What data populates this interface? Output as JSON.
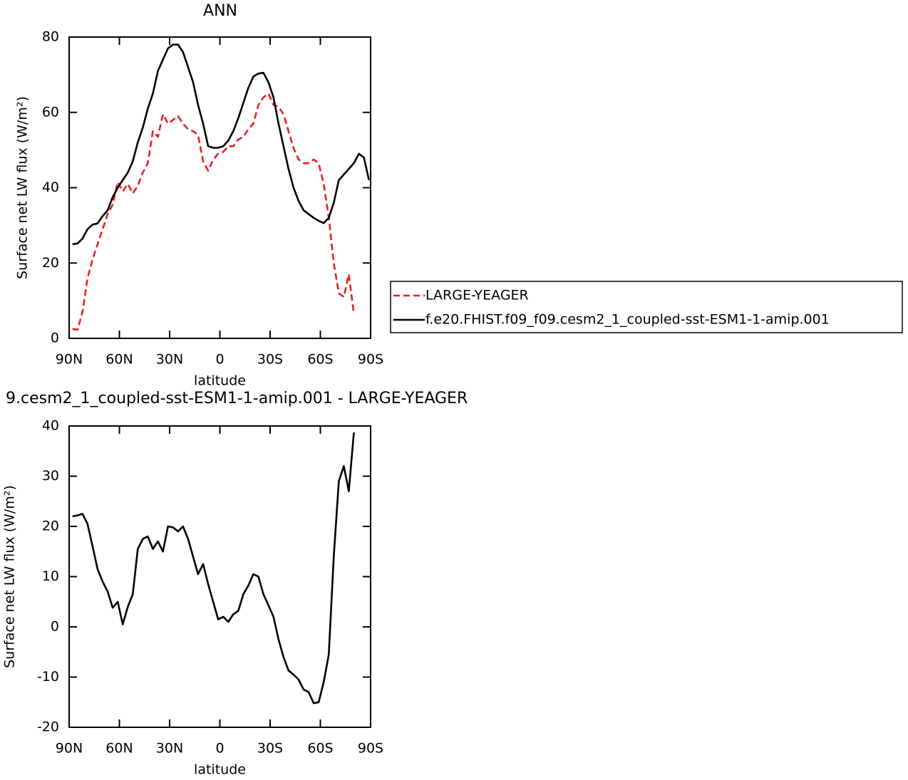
{
  "chart_data": [
    {
      "type": "line",
      "title": "ANN",
      "x_label": "latitude",
      "y_label": "Surface net LW flux (W/m²)",
      "x": [
        88,
        85,
        82,
        79,
        76,
        73,
        70,
        67,
        64,
        61,
        58,
        55,
        52,
        49,
        46,
        43,
        40,
        37,
        34,
        31,
        28,
        25,
        22,
        19,
        16,
        13,
        10,
        7,
        4,
        1,
        -2,
        -5,
        -8,
        -11,
        -14,
        -17,
        -20,
        -23,
        -26,
        -29,
        -32,
        -35,
        -38,
        -41,
        -44,
        -47,
        -50,
        -53,
        -56,
        -59,
        -62,
        -65,
        -68,
        -71,
        -74,
        -77,
        -80,
        -83,
        -86,
        -89
      ],
      "xlim": [
        90,
        -90
      ],
      "xticks": [
        {
          "value": 90,
          "label": "90N"
        },
        {
          "value": 60,
          "label": "60N"
        },
        {
          "value": 30,
          "label": "30N"
        },
        0,
        {
          "value": -30,
          "label": "30S"
        },
        {
          "value": -60,
          "label": "60S"
        },
        {
          "value": -90,
          "label": "90S"
        }
      ],
      "ylim": [
        0,
        80
      ],
      "yticks": [
        0,
        20,
        40,
        60,
        80
      ],
      "legend": "right",
      "series": [
        {
          "name": "LARGE-YEAGER",
          "color": "#e8201c",
          "style": "dashed",
          "values": [
            2.5,
            2.3,
            7,
            16,
            21,
            25,
            29,
            33,
            35.5,
            41.5,
            39,
            41,
            38.5,
            40.5,
            44,
            46.5,
            55,
            53.5,
            59.5,
            57,
            58,
            59,
            57,
            55.5,
            55,
            54,
            47,
            44.5,
            47.5,
            49,
            49.5,
            51,
            51,
            52.8,
            53.5,
            55.5,
            57,
            62,
            64,
            65,
            62,
            61.5,
            59.5,
            55,
            50.5,
            47.5,
            46.5,
            46.5,
            47.5,
            46.5,
            41,
            32,
            20,
            12,
            11,
            17,
            6.5,
            null,
            null,
            null
          ]
        },
        {
          "name": "f.e20.FHIST.f09_f09.cesm2_1_coupled-sst-ESM1-1-amip.001",
          "color": "#000000",
          "style": "solid",
          "values": [
            25,
            25.2,
            26.5,
            29,
            30.2,
            30.5,
            32.5,
            34,
            37.5,
            40,
            42,
            44,
            47,
            52,
            56,
            61,
            65,
            71,
            74,
            77,
            78,
            78,
            76,
            72,
            68,
            62,
            57,
            51,
            50.6,
            50.6,
            51,
            52.5,
            55,
            58.5,
            62.5,
            66.5,
            69.5,
            70.3,
            70.5,
            68,
            64,
            57,
            51,
            45,
            40,
            36.5,
            34,
            33,
            32,
            31.2,
            30.6,
            32,
            36,
            42,
            43.5,
            45,
            46.5,
            49,
            48,
            42
          ]
        }
      ]
    },
    {
      "type": "line",
      "title": "9.cesm2_1_coupled-sst-ESM1-1-amip.001 - LARGE-YEAGER",
      "x_label": "latitude",
      "y_label": "Surface net LW flux (W/m²)",
      "x": [
        88,
        85,
        82,
        79,
        76,
        73,
        70,
        67,
        64,
        61,
        58,
        55,
        52,
        49,
        46,
        43,
        40,
        37,
        34,
        31,
        28,
        25,
        22,
        19,
        16,
        13,
        10,
        7,
        4,
        1,
        -2,
        -5,
        -8,
        -11,
        -14,
        -17,
        -20,
        -23,
        -26,
        -29,
        -32,
        -35,
        -38,
        -41,
        -44,
        -47,
        -50,
        -53,
        -56,
        -59,
        -62,
        -65,
        -68,
        -71,
        -74,
        -77,
        -80,
        -83,
        -86,
        -89
      ],
      "xlim": [
        90,
        -90
      ],
      "xticks": [
        {
          "value": 90,
          "label": "90N"
        },
        {
          "value": 60,
          "label": "60N"
        },
        {
          "value": 30,
          "label": "30N"
        },
        0,
        {
          "value": -30,
          "label": "30S"
        },
        {
          "value": -60,
          "label": "60S"
        },
        {
          "value": -90,
          "label": "90S"
        }
      ],
      "ylim": [
        -20,
        40
      ],
      "yticks": [
        -20,
        -10,
        0,
        10,
        20,
        30,
        40
      ],
      "series": [
        {
          "color": "#000000",
          "style": "solid",
          "values": [
            22,
            22.2,
            22.5,
            20.5,
            16,
            11.5,
            9,
            7,
            3.8,
            5,
            0.5,
            4,
            6.5,
            15.5,
            17.5,
            18,
            15.5,
            17,
            15,
            20,
            19.8,
            19,
            20,
            17.5,
            14,
            10.5,
            12.5,
            8.5,
            5,
            1.5,
            2,
            1,
            2.5,
            3.2,
            6.5,
            8.2,
            10.5,
            10,
            6.5,
            4.3,
            2,
            -2.5,
            -6,
            -8.7,
            -9.5,
            -10.5,
            -12.5,
            -13,
            -15.2,
            -15,
            -11,
            -5.5,
            14,
            29,
            32,
            27,
            38.7,
            null,
            null,
            null
          ]
        }
      ]
    }
  ]
}
